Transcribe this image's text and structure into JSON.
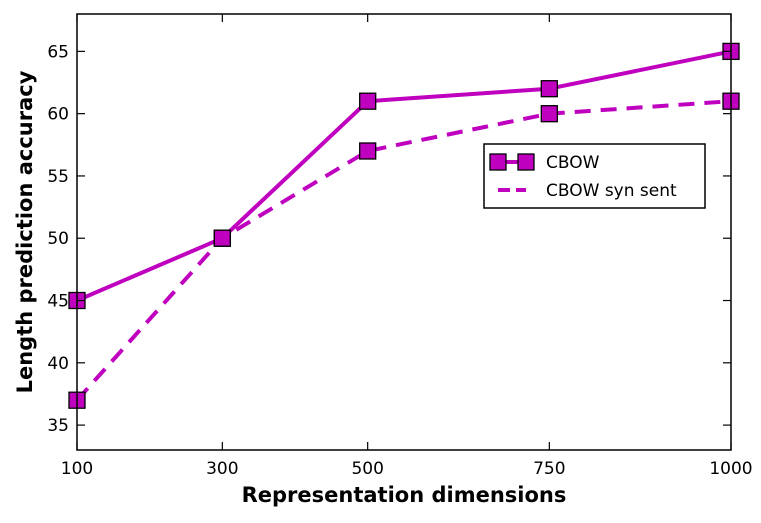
{
  "chart_data": {
    "type": "line",
    "xlabel": "Representation dimensions",
    "ylabel": "Length prediction accuracy",
    "x_categories": [
      "100",
      "300",
      "500",
      "750",
      "1000"
    ],
    "xlim": [
      100,
      1000
    ],
    "ylim": [
      33,
      68
    ],
    "y_ticks": [
      35,
      40,
      45,
      50,
      55,
      60,
      65
    ],
    "grid": false,
    "legend_position": "center-right",
    "series": [
      {
        "name": "CBOW",
        "style": "solid",
        "marker": "square",
        "color": "#bf00bf",
        "values": [
          45,
          50,
          61,
          62,
          65
        ]
      },
      {
        "name": "CBOW syn sent",
        "style": "dashed",
        "marker": "square",
        "color": "#bf00bf",
        "values": [
          37,
          50,
          57,
          60,
          61
        ]
      }
    ]
  }
}
